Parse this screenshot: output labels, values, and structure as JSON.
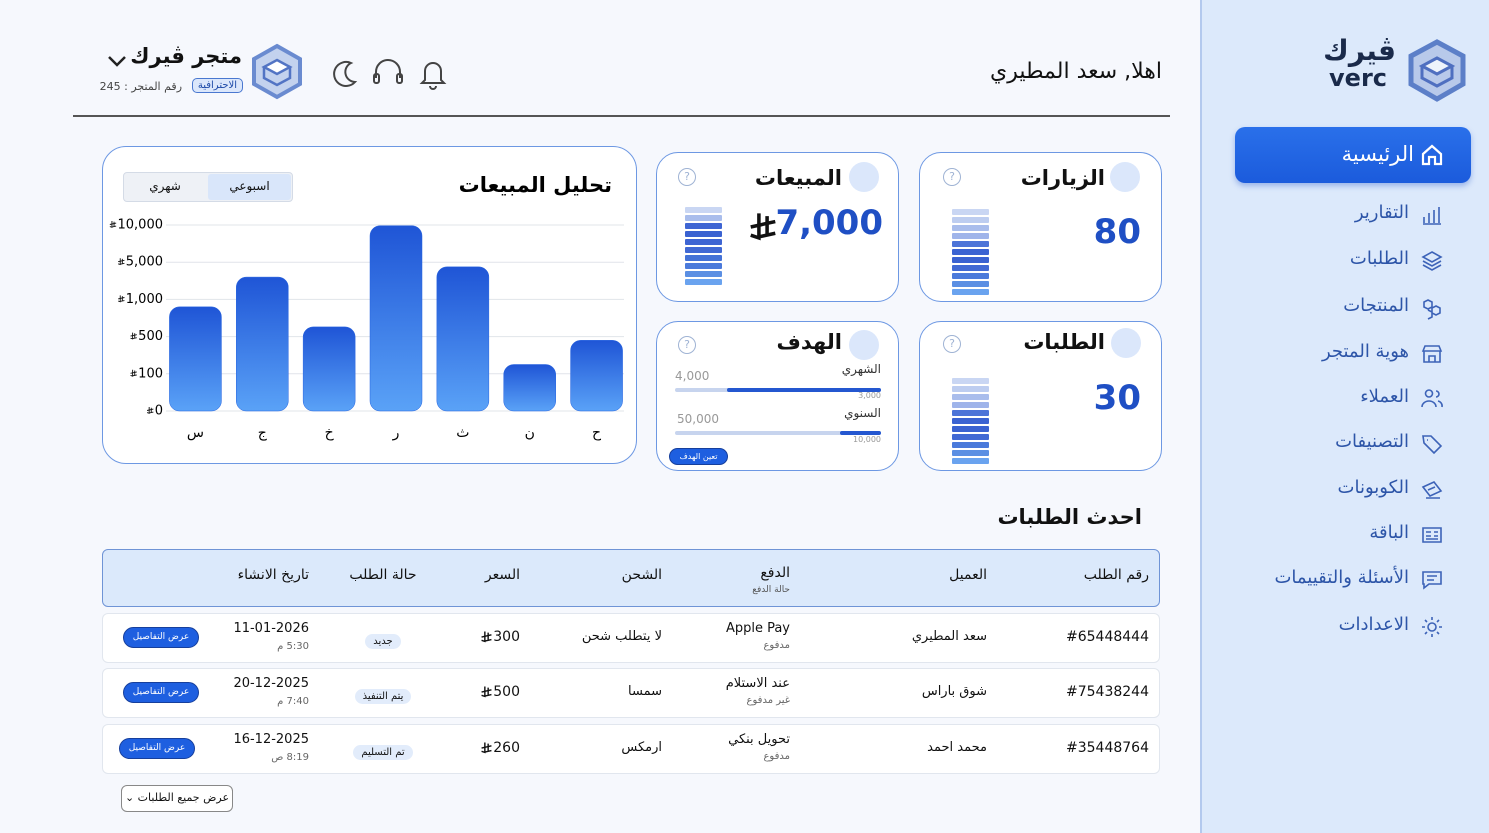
{
  "sidebar": {
    "logo": {
      "arabic": "ڤيرك",
      "latin": "verc"
    },
    "nav": [
      "الرئيسية",
      "التقارير",
      "الطلبات",
      "المنتجات",
      "هوية المتجر",
      "العملاء",
      "التصنيفات",
      "الكوبونات",
      "الباقة",
      "الأسئلة والتقييمات",
      "الاعدادات"
    ],
    "active": 0
  },
  "header": {
    "greeting": "اهلا, سعد المطيري",
    "store_name": "متجر ڤيرك",
    "plan": "الاحترافية",
    "store_number": "رقم المتجر : 245"
  },
  "cards": {
    "visits": {
      "title": "الزيارات",
      "value": "80"
    },
    "orders": {
      "title": "الطلبات",
      "value": "30"
    },
    "sales": {
      "title": "المبيعات",
      "value": "7,000"
    },
    "goal": {
      "title": "الهدف",
      "monthly": {
        "label": "الشهري",
        "target": {
          "value": 4000,
          "label": "4,000"
        },
        "achieved": {
          "value": 3000,
          "label": "3,000"
        }
      },
      "yearly": {
        "label": "السنوي",
        "target": {
          "value": 50000,
          "label": "50,000"
        },
        "achieved": {
          "value": 10000,
          "label": "10,000"
        }
      },
      "button": "تعين الهدف"
    }
  },
  "sales_toggle": {
    "options": [
      "اسبوعي",
      "شهري"
    ],
    "selected": 0
  },
  "chart_data": {
    "type": "bar",
    "title": "تحليل المبيعات",
    "categories": [
      "س",
      "ج",
      "خ",
      "ر",
      "ث",
      "ن",
      "ح"
    ],
    "values": [
      900,
      3400,
      630,
      9900,
      4500,
      200,
      460
    ],
    "color": "#2563e0",
    "y_scale": "piecewise",
    "grid": true,
    "ylim": [
      0,
      10000
    ],
    "yticks": [
      0,
      100,
      500,
      {
        "value": 1000,
        "label": "1,000"
      },
      {
        "value": 5000,
        "label": "5,000"
      },
      {
        "value": 10000,
        "label": "10,000"
      }
    ]
  },
  "orders": {
    "title": "احدث الطلبات",
    "columns": [
      "رقم الطلب",
      "العميل",
      "الدفع",
      "الشحن",
      "السعر",
      "حالة الطلب",
      "تاريخ الانشاء"
    ],
    "payment_subheader": "حالة الدفع",
    "rows": [
      {
        "id": "#65448444",
        "customer": "سعد المطيري",
        "payment": "Apple Pay",
        "payment_status": "مدفوع",
        "shipping": "لا يتطلب شحن",
        "price": 300,
        "status": "جديد",
        "date": "11-01-2026",
        "time": "5:30 م",
        "action": "عرض التفاصيل"
      },
      {
        "id": "#75438244",
        "customer": "شوق باراس",
        "payment": "عند الاستلام",
        "payment_status": "غير مدفوع",
        "shipping": "سمسا",
        "price": 500,
        "status": "يتم التنفيذ",
        "date": "20-12-2025",
        "time": "7:40 م",
        "action": "عرض التفاصيل"
      },
      {
        "id": "#35448764",
        "customer": "محمد احمد",
        "payment": "تحويل بنكي",
        "payment_status": "مدفوع",
        "shipping": "ارمكس",
        "price": 260,
        "status": "تم التسليم",
        "date": "16-12-2025",
        "time": "8:19 ص",
        "action": "عرض التفاصيل"
      }
    ],
    "view_all": "عرض جميع الطلبات"
  }
}
